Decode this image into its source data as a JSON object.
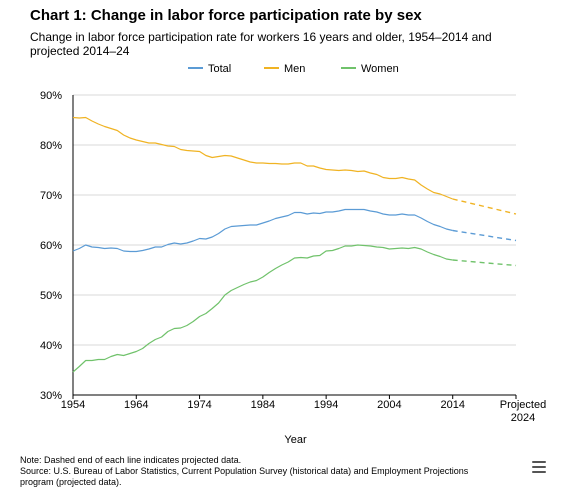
{
  "header": {
    "title": "Chart 1: Change in labor force participation rate by sex",
    "subtitle": "Change in labor force participation rate for workers 16 years and older, 1954–2014 and projected 2014–24"
  },
  "footer": {
    "note": "Note: Dashed end of each line indicates projected data.",
    "source": "Source: U.S. Bureau of Labor Statistics, Current Population Survey (historical data) and Employment Projections program (projected data)."
  },
  "menu_icon": "hamburger-menu-icon",
  "chart_data": {
    "type": "line",
    "xlabel": "Year",
    "ylabel": "",
    "xlim": [
      1954,
      2024
    ],
    "ylim": [
      30,
      90
    ],
    "grid": true,
    "legend_position": "top",
    "y_ticks": [
      "30%",
      "40%",
      "50%",
      "60%",
      "70%",
      "80%",
      "90%"
    ],
    "x_ticks": [
      {
        "value": 1954,
        "label": "1954"
      },
      {
        "value": 1964,
        "label": "1964"
      },
      {
        "value": 1974,
        "label": "1974"
      },
      {
        "value": 1984,
        "label": "1984"
      },
      {
        "value": 1994,
        "label": "1994"
      },
      {
        "value": 2004,
        "label": "2004"
      },
      {
        "value": 2014,
        "label": "2014"
      },
      {
        "value": 2024,
        "label_lines": [
          "Projected",
          "2024"
        ]
      }
    ],
    "projection_start": 2014,
    "series": [
      {
        "name": "Total",
        "color": "#5b9bd5",
        "points": [
          [
            1954,
            58.8
          ],
          [
            1955,
            59.3
          ],
          [
            1956,
            60.0
          ],
          [
            1957,
            59.6
          ],
          [
            1958,
            59.5
          ],
          [
            1959,
            59.3
          ],
          [
            1960,
            59.4
          ],
          [
            1961,
            59.3
          ],
          [
            1962,
            58.8
          ],
          [
            1963,
            58.7
          ],
          [
            1964,
            58.7
          ],
          [
            1965,
            58.9
          ],
          [
            1966,
            59.2
          ],
          [
            1967,
            59.6
          ],
          [
            1968,
            59.6
          ],
          [
            1969,
            60.1
          ],
          [
            1970,
            60.4
          ],
          [
            1971,
            60.2
          ],
          [
            1972,
            60.4
          ],
          [
            1973,
            60.8
          ],
          [
            1974,
            61.3
          ],
          [
            1975,
            61.2
          ],
          [
            1976,
            61.6
          ],
          [
            1977,
            62.3
          ],
          [
            1978,
            63.2
          ],
          [
            1979,
            63.7
          ],
          [
            1980,
            63.8
          ],
          [
            1981,
            63.9
          ],
          [
            1982,
            64.0
          ],
          [
            1983,
            64.0
          ],
          [
            1984,
            64.4
          ],
          [
            1985,
            64.8
          ],
          [
            1986,
            65.3
          ],
          [
            1987,
            65.6
          ],
          [
            1988,
            65.9
          ],
          [
            1989,
            66.5
          ],
          [
            1990,
            66.5
          ],
          [
            1991,
            66.2
          ],
          [
            1992,
            66.4
          ],
          [
            1993,
            66.3
          ],
          [
            1994,
            66.6
          ],
          [
            1995,
            66.6
          ],
          [
            1996,
            66.8
          ],
          [
            1997,
            67.1
          ],
          [
            1998,
            67.1
          ],
          [
            1999,
            67.1
          ],
          [
            2000,
            67.1
          ],
          [
            2001,
            66.8
          ],
          [
            2002,
            66.6
          ],
          [
            2003,
            66.2
          ],
          [
            2004,
            66.0
          ],
          [
            2005,
            66.0
          ],
          [
            2006,
            66.2
          ],
          [
            2007,
            66.0
          ],
          [
            2008,
            66.0
          ],
          [
            2009,
            65.4
          ],
          [
            2010,
            64.7
          ],
          [
            2011,
            64.1
          ],
          [
            2012,
            63.7
          ],
          [
            2013,
            63.2
          ],
          [
            2014,
            62.9
          ],
          [
            2024,
            60.9
          ]
        ]
      },
      {
        "name": "Men",
        "color": "#f0b323",
        "points": [
          [
            1954,
            85.5
          ],
          [
            1955,
            85.4
          ],
          [
            1956,
            85.5
          ],
          [
            1957,
            84.8
          ],
          [
            1958,
            84.2
          ],
          [
            1959,
            83.7
          ],
          [
            1960,
            83.3
          ],
          [
            1961,
            82.9
          ],
          [
            1962,
            82.0
          ],
          [
            1963,
            81.4
          ],
          [
            1964,
            81.0
          ],
          [
            1965,
            80.7
          ],
          [
            1966,
            80.4
          ],
          [
            1967,
            80.4
          ],
          [
            1968,
            80.1
          ],
          [
            1969,
            79.8
          ],
          [
            1970,
            79.7
          ],
          [
            1971,
            79.1
          ],
          [
            1972,
            78.9
          ],
          [
            1973,
            78.8
          ],
          [
            1974,
            78.7
          ],
          [
            1975,
            77.9
          ],
          [
            1976,
            77.5
          ],
          [
            1977,
            77.7
          ],
          [
            1978,
            77.9
          ],
          [
            1979,
            77.8
          ],
          [
            1980,
            77.4
          ],
          [
            1981,
            77.0
          ],
          [
            1982,
            76.6
          ],
          [
            1983,
            76.4
          ],
          [
            1984,
            76.4
          ],
          [
            1985,
            76.3
          ],
          [
            1986,
            76.3
          ],
          [
            1987,
            76.2
          ],
          [
            1988,
            76.2
          ],
          [
            1989,
            76.4
          ],
          [
            1990,
            76.4
          ],
          [
            1991,
            75.8
          ],
          [
            1992,
            75.8
          ],
          [
            1993,
            75.4
          ],
          [
            1994,
            75.1
          ],
          [
            1995,
            75.0
          ],
          [
            1996,
            74.9
          ],
          [
            1997,
            75.0
          ],
          [
            1998,
            74.9
          ],
          [
            1999,
            74.7
          ],
          [
            2000,
            74.8
          ],
          [
            2001,
            74.4
          ],
          [
            2002,
            74.1
          ],
          [
            2003,
            73.5
          ],
          [
            2004,
            73.3
          ],
          [
            2005,
            73.3
          ],
          [
            2006,
            73.5
          ],
          [
            2007,
            73.2
          ],
          [
            2008,
            73.0
          ],
          [
            2009,
            72.0
          ],
          [
            2010,
            71.2
          ],
          [
            2011,
            70.5
          ],
          [
            2012,
            70.2
          ],
          [
            2013,
            69.7
          ],
          [
            2014,
            69.2
          ],
          [
            2024,
            66.2
          ]
        ]
      },
      {
        "name": "Women",
        "color": "#70c26b",
        "points": [
          [
            1954,
            34.6
          ],
          [
            1955,
            35.7
          ],
          [
            1956,
            36.9
          ],
          [
            1957,
            36.9
          ],
          [
            1958,
            37.1
          ],
          [
            1959,
            37.1
          ],
          [
            1960,
            37.7
          ],
          [
            1961,
            38.1
          ],
          [
            1962,
            37.9
          ],
          [
            1963,
            38.3
          ],
          [
            1964,
            38.7
          ],
          [
            1965,
            39.3
          ],
          [
            1966,
            40.3
          ],
          [
            1967,
            41.1
          ],
          [
            1968,
            41.6
          ],
          [
            1969,
            42.7
          ],
          [
            1970,
            43.3
          ],
          [
            1971,
            43.4
          ],
          [
            1972,
            43.9
          ],
          [
            1973,
            44.7
          ],
          [
            1974,
            45.7
          ],
          [
            1975,
            46.3
          ],
          [
            1976,
            47.3
          ],
          [
            1977,
            48.4
          ],
          [
            1978,
            50.0
          ],
          [
            1979,
            50.9
          ],
          [
            1980,
            51.5
          ],
          [
            1981,
            52.1
          ],
          [
            1982,
            52.6
          ],
          [
            1983,
            52.9
          ],
          [
            1984,
            53.6
          ],
          [
            1985,
            54.5
          ],
          [
            1986,
            55.3
          ],
          [
            1987,
            56.0
          ],
          [
            1988,
            56.6
          ],
          [
            1989,
            57.4
          ],
          [
            1990,
            57.5
          ],
          [
            1991,
            57.4
          ],
          [
            1992,
            57.8
          ],
          [
            1993,
            57.9
          ],
          [
            1994,
            58.8
          ],
          [
            1995,
            58.9
          ],
          [
            1996,
            59.3
          ],
          [
            1997,
            59.8
          ],
          [
            1998,
            59.8
          ],
          [
            1999,
            60.0
          ],
          [
            2000,
            59.9
          ],
          [
            2001,
            59.8
          ],
          [
            2002,
            59.6
          ],
          [
            2003,
            59.5
          ],
          [
            2004,
            59.2
          ],
          [
            2005,
            59.3
          ],
          [
            2006,
            59.4
          ],
          [
            2007,
            59.3
          ],
          [
            2008,
            59.5
          ],
          [
            2009,
            59.2
          ],
          [
            2010,
            58.6
          ],
          [
            2011,
            58.1
          ],
          [
            2012,
            57.7
          ],
          [
            2013,
            57.2
          ],
          [
            2014,
            57.0
          ],
          [
            2024,
            55.9
          ]
        ]
      }
    ]
  }
}
